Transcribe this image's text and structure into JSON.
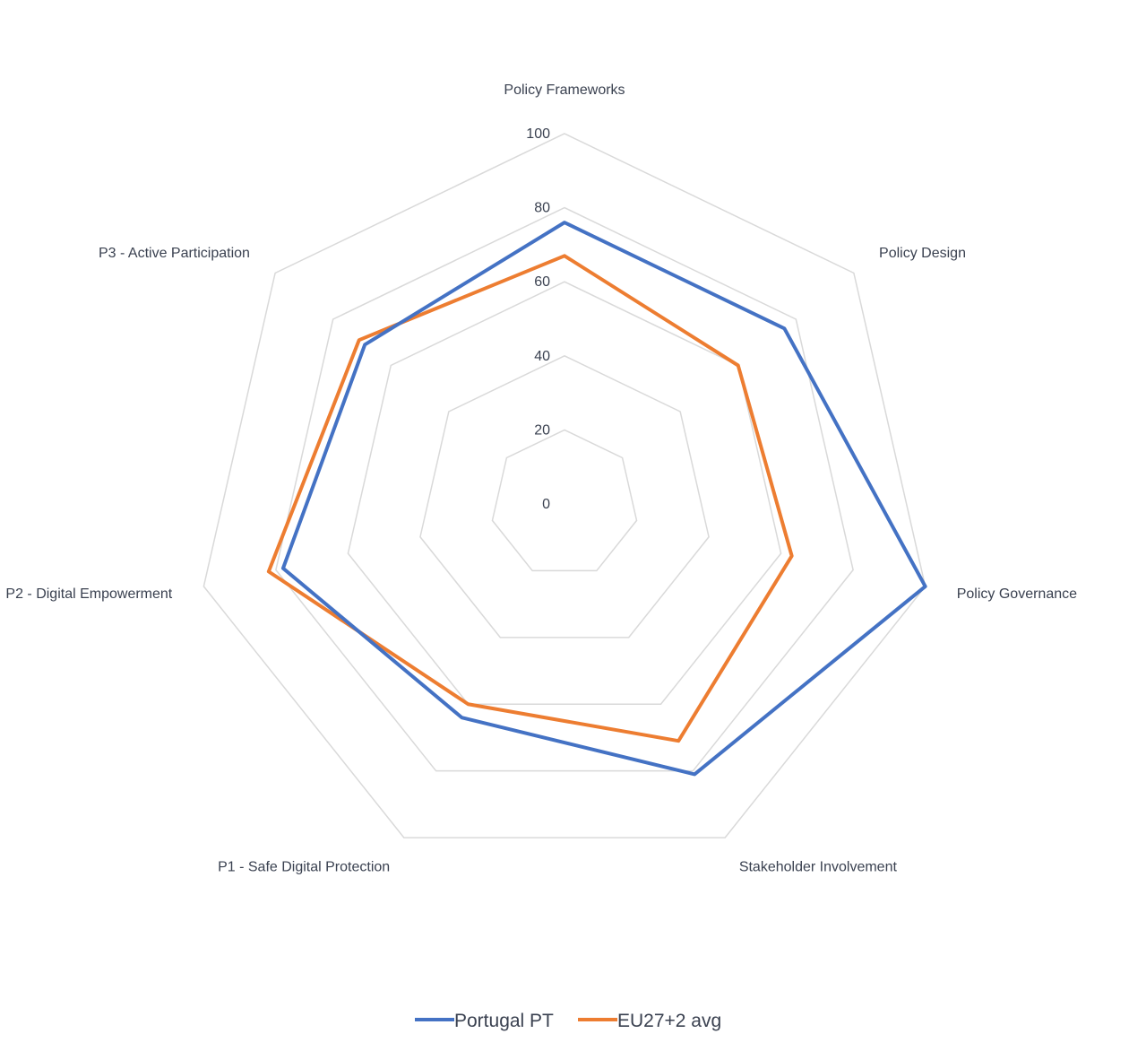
{
  "chart_data": {
    "type": "radar",
    "categories": [
      "Policy Frameworks",
      "Policy Design",
      "Policy Governance",
      "Stakeholder Involvement",
      "P1 - Safe Digital Protection",
      "P2 - Digital Empowerment",
      "P3 - Active Participation"
    ],
    "ticks": [
      "0",
      "20",
      "40",
      "60",
      "80",
      "100"
    ],
    "rlim": [
      0,
      100
    ],
    "grid": true,
    "legend_position": "bottom",
    "series": [
      {
        "name": "Portugal PT",
        "color": "#4472C4",
        "values": [
          76,
          76,
          100,
          81,
          64,
          78,
          69
        ]
      },
      {
        "name": "EU27+2 avg",
        "color": "#ED7D31",
        "values": [
          67,
          60,
          63,
          71,
          60,
          82,
          71
        ]
      }
    ]
  }
}
